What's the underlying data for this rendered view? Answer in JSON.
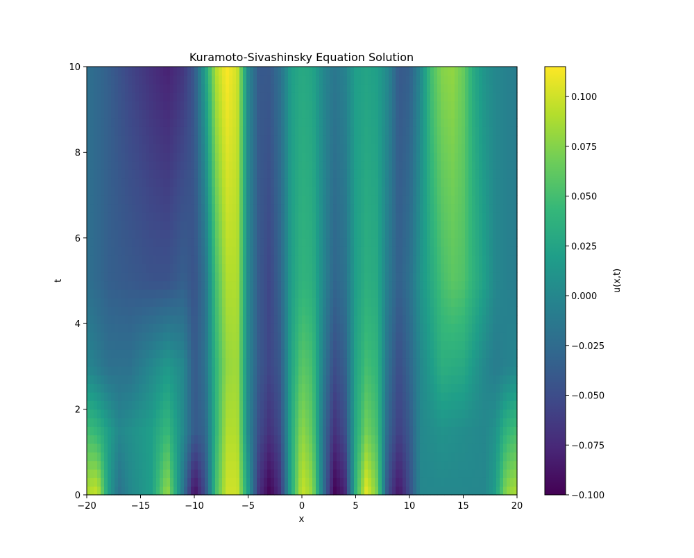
{
  "chart_data": {
    "type": "heatmap",
    "title": "Kuramoto-Sivashinsky Equation Solution",
    "xlabel": "x",
    "ylabel": "t",
    "xlim": [
      -20,
      20
    ],
    "ylim": [
      0,
      10
    ],
    "x_ticks": [
      -20,
      -15,
      -10,
      -5,
      0,
      5,
      10,
      15,
      20
    ],
    "y_ticks": [
      0,
      2,
      4,
      6,
      8,
      10
    ],
    "x_tick_labels": [
      "−20",
      "−15",
      "−10",
      "−5",
      "0",
      "5",
      "10",
      "15",
      "20"
    ],
    "y_tick_labels": [
      "0",
      "2",
      "4",
      "6",
      "8",
      "10"
    ],
    "colormap": "viridis",
    "colorbar": {
      "label": "u(x,t)",
      "vmin": -0.1,
      "vmax": 0.115,
      "ticks": [
        -0.1,
        -0.075,
        -0.05,
        -0.025,
        0.0,
        0.025,
        0.05,
        0.075,
        0.1
      ],
      "tick_labels": [
        "−0.100",
        "−0.075",
        "−0.050",
        "−0.025",
        "0.000",
        "0.025",
        "0.050",
        "0.075",
        "0.100"
      ]
    },
    "t_samples": [
      0,
      1.5,
      3,
      5,
      10
    ],
    "profiles": [
      {
        "t": 0,
        "points": [
          [
            -20,
            0.09
          ],
          [
            -19,
            0.1
          ],
          [
            -18,
            0.02
          ],
          [
            -17,
            -0.02
          ],
          [
            -16,
            0.0
          ],
          [
            -14,
            0.02
          ],
          [
            -12.5,
            0.085
          ],
          [
            -11,
            -0.02
          ],
          [
            -10,
            -0.095
          ],
          [
            -9,
            -0.05
          ],
          [
            -8,
            0.05
          ],
          [
            -7,
            0.1
          ],
          [
            -6,
            0.1
          ],
          [
            -5,
            0.02
          ],
          [
            -4,
            -0.07
          ],
          [
            -3,
            -0.1
          ],
          [
            -2,
            -0.07
          ],
          [
            -1,
            0.03
          ],
          [
            0,
            0.1
          ],
          [
            1,
            0.08
          ],
          [
            2,
            -0.02
          ],
          [
            3,
            -0.1
          ],
          [
            4,
            -0.08
          ],
          [
            5,
            0.04
          ],
          [
            6,
            0.11
          ],
          [
            7,
            0.07
          ],
          [
            8,
            -0.05
          ],
          [
            9,
            -0.09
          ],
          [
            10,
            -0.05
          ],
          [
            11,
            0.0
          ],
          [
            13,
            0.0
          ],
          [
            15,
            0.0
          ],
          [
            17,
            0.0
          ],
          [
            18,
            0.02
          ],
          [
            19,
            0.08
          ],
          [
            20,
            0.09
          ]
        ]
      },
      {
        "t": 1.5,
        "points": [
          [
            -20,
            0.05
          ],
          [
            -19,
            0.04
          ],
          [
            -17,
            0.0
          ],
          [
            -14,
            0.02
          ],
          [
            -12.5,
            0.045
          ],
          [
            -11,
            0.0
          ],
          [
            -10,
            -0.04
          ],
          [
            -9,
            -0.03
          ],
          [
            -8,
            0.04
          ],
          [
            -7,
            0.09
          ],
          [
            -6,
            0.09
          ],
          [
            -5,
            0.0
          ],
          [
            -4,
            -0.05
          ],
          [
            -3,
            -0.07
          ],
          [
            -2,
            -0.05
          ],
          [
            -1,
            0.03
          ],
          [
            0,
            0.08
          ],
          [
            1,
            0.06
          ],
          [
            2,
            -0.02
          ],
          [
            3,
            -0.07
          ],
          [
            4,
            -0.05
          ],
          [
            5,
            0.03
          ],
          [
            6,
            0.07
          ],
          [
            7,
            0.05
          ],
          [
            8,
            -0.03
          ],
          [
            9,
            -0.06
          ],
          [
            10,
            -0.04
          ],
          [
            11,
            0.0
          ],
          [
            13,
            0.01
          ],
          [
            15,
            0.005
          ],
          [
            17,
            0.0
          ],
          [
            18,
            0.01
          ],
          [
            19,
            0.04
          ],
          [
            20,
            0.05
          ]
        ]
      },
      {
        "t": 3,
        "points": [
          [
            -20,
            0.0
          ],
          [
            -18,
            -0.02
          ],
          [
            -16,
            -0.02
          ],
          [
            -14,
            0.0
          ],
          [
            -12.5,
            0.015
          ],
          [
            -11,
            0.0
          ],
          [
            -10,
            -0.04
          ],
          [
            -9,
            -0.02
          ],
          [
            -8,
            0.04
          ],
          [
            -7,
            0.08
          ],
          [
            -6,
            0.085
          ],
          [
            -5,
            0.0
          ],
          [
            -4,
            -0.04
          ],
          [
            -3,
            -0.055
          ],
          [
            -2,
            -0.04
          ],
          [
            -1,
            0.025
          ],
          [
            0,
            0.06
          ],
          [
            1,
            0.05
          ],
          [
            2,
            -0.01
          ],
          [
            3,
            -0.05
          ],
          [
            4,
            -0.035
          ],
          [
            5,
            0.025
          ],
          [
            6,
            0.05
          ],
          [
            7,
            0.04
          ],
          [
            8,
            -0.02
          ],
          [
            9,
            -0.05
          ],
          [
            10,
            -0.03
          ],
          [
            11,
            0.0
          ],
          [
            13,
            0.035
          ],
          [
            15,
            0.03
          ],
          [
            17,
            0.0
          ],
          [
            18,
            -0.01
          ],
          [
            20,
            0.0
          ]
        ]
      },
      {
        "t": 5,
        "points": [
          [
            -20,
            -0.02
          ],
          [
            -18,
            -0.035
          ],
          [
            -16,
            -0.04
          ],
          [
            -14,
            -0.045
          ],
          [
            -12.5,
            -0.045
          ],
          [
            -11,
            -0.035
          ],
          [
            -10,
            -0.045
          ],
          [
            -9,
            -0.02
          ],
          [
            -8,
            0.05
          ],
          [
            -7,
            0.09
          ],
          [
            -6,
            0.09
          ],
          [
            -5,
            0.0
          ],
          [
            -4,
            -0.04
          ],
          [
            -3,
            -0.055
          ],
          [
            -2,
            -0.03
          ],
          [
            -1,
            0.02
          ],
          [
            0,
            0.04
          ],
          [
            1,
            0.035
          ],
          [
            2,
            0.0
          ],
          [
            3,
            -0.03
          ],
          [
            4,
            -0.02
          ],
          [
            5,
            0.02
          ],
          [
            6,
            0.035
          ],
          [
            7,
            0.03
          ],
          [
            8,
            -0.01
          ],
          [
            9,
            -0.035
          ],
          [
            10,
            -0.02
          ],
          [
            11,
            0.01
          ],
          [
            13,
            0.05
          ],
          [
            14,
            0.06
          ],
          [
            15,
            0.055
          ],
          [
            17,
            0.02
          ],
          [
            18,
            0.0
          ],
          [
            20,
            -0.01
          ]
        ]
      },
      {
        "t": 10,
        "points": [
          [
            -20,
            -0.02
          ],
          [
            -18,
            -0.035
          ],
          [
            -16,
            -0.055
          ],
          [
            -14,
            -0.07
          ],
          [
            -12.5,
            -0.08
          ],
          [
            -11,
            -0.065
          ],
          [
            -10,
            -0.04
          ],
          [
            -9,
            0.02
          ],
          [
            -8,
            0.09
          ],
          [
            -7,
            0.115
          ],
          [
            -6,
            0.1
          ],
          [
            -5,
            0.0
          ],
          [
            -4,
            -0.04
          ],
          [
            -3,
            -0.04
          ],
          [
            -2,
            -0.02
          ],
          [
            -1,
            0.02
          ],
          [
            0,
            0.03
          ],
          [
            1,
            0.025
          ],
          [
            2,
            0.0
          ],
          [
            3,
            -0.015
          ],
          [
            4,
            -0.005
          ],
          [
            5,
            0.02
          ],
          [
            6,
            0.025
          ],
          [
            7,
            0.02
          ],
          [
            8,
            0.0
          ],
          [
            9,
            -0.04
          ],
          [
            10,
            -0.035
          ],
          [
            11,
            0.0
          ],
          [
            12,
            0.05
          ],
          [
            13,
            0.075
          ],
          [
            14,
            0.08
          ],
          [
            15,
            0.065
          ],
          [
            16,
            0.03
          ],
          [
            17,
            0.01
          ],
          [
            18,
            0.0
          ],
          [
            20,
            -0.01
          ]
        ]
      }
    ]
  }
}
